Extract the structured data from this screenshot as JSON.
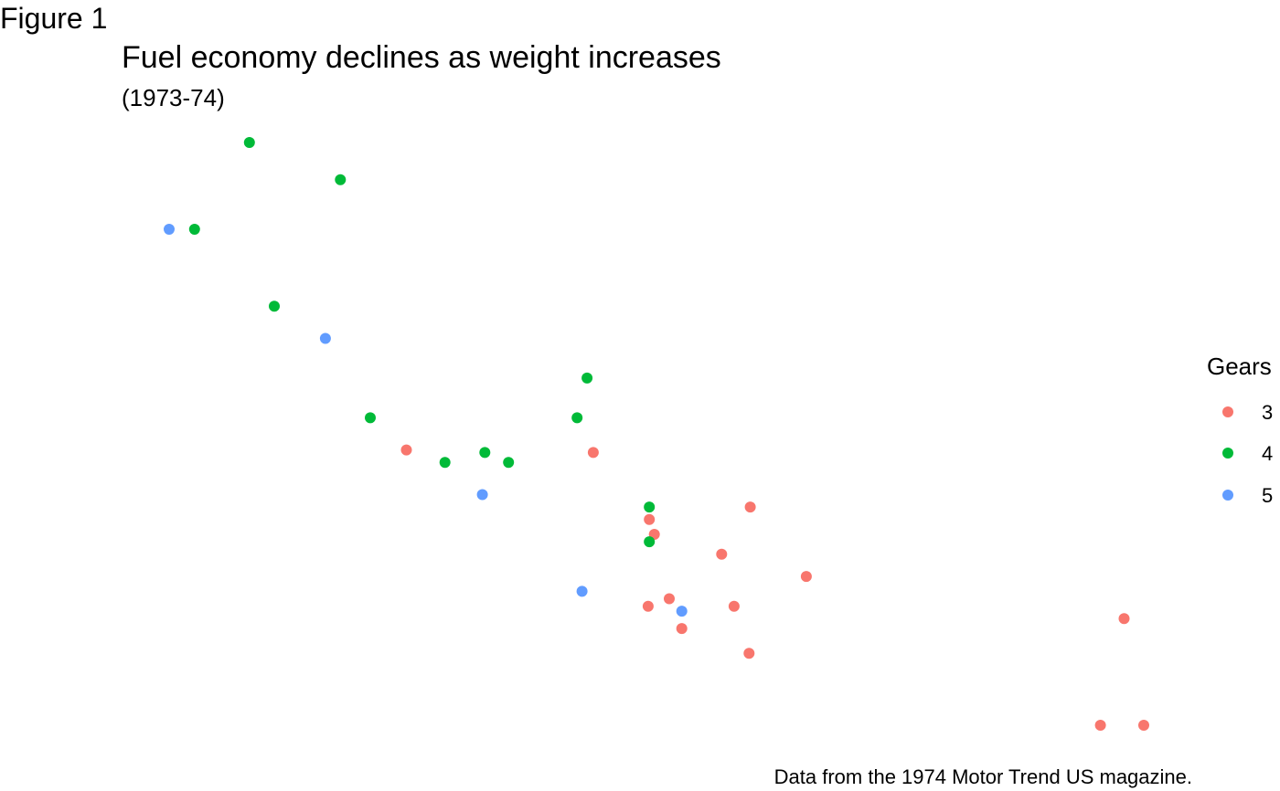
{
  "figure": {
    "tag": "Figure 1"
  },
  "chart_data": {
    "type": "scatter",
    "title": "Fuel economy declines as weight increases",
    "subtitle": "(1973-74)",
    "caption": "Data from the 1974 Motor Trend US magazine.",
    "xlabel": "",
    "ylabel": "",
    "xlim": [
      1.513,
      5.424
    ],
    "ylim": [
      10.4,
      33.9
    ],
    "grid": false,
    "axes_visible": false,
    "legend": {
      "title": "Gears",
      "position": "right",
      "entries": [
        {
          "label": "3",
          "color": "#F8766D"
        },
        {
          "label": "4",
          "color": "#00BA38"
        },
        {
          "label": "5",
          "color": "#619CFF"
        }
      ]
    },
    "series": [
      {
        "name": "3",
        "color": "#F8766D",
        "points": [
          {
            "x": 3.215,
            "y": 21.4
          },
          {
            "x": 3.44,
            "y": 18.7
          },
          {
            "x": 3.46,
            "y": 18.1
          },
          {
            "x": 3.57,
            "y": 14.3
          },
          {
            "x": 4.07,
            "y": 16.4
          },
          {
            "x": 3.73,
            "y": 17.3
          },
          {
            "x": 3.78,
            "y": 15.2
          },
          {
            "x": 5.25,
            "y": 10.4
          },
          {
            "x": 5.424,
            "y": 10.4
          },
          {
            "x": 5.345,
            "y": 14.7
          },
          {
            "x": 2.465,
            "y": 21.5
          },
          {
            "x": 3.52,
            "y": 15.5
          },
          {
            "x": 3.435,
            "y": 15.2
          },
          {
            "x": 3.84,
            "y": 13.3
          },
          {
            "x": 3.845,
            "y": 19.2
          }
        ]
      },
      {
        "name": "4",
        "color": "#00BA38",
        "points": [
          {
            "x": 2.62,
            "y": 21.0
          },
          {
            "x": 2.875,
            "y": 21.0
          },
          {
            "x": 2.32,
            "y": 22.8
          },
          {
            "x": 3.19,
            "y": 24.4
          },
          {
            "x": 3.15,
            "y": 22.8
          },
          {
            "x": 3.44,
            "y": 19.2
          },
          {
            "x": 3.44,
            "y": 17.8
          },
          {
            "x": 2.2,
            "y": 32.4
          },
          {
            "x": 1.615,
            "y": 30.4
          },
          {
            "x": 1.835,
            "y": 33.9
          },
          {
            "x": 1.935,
            "y": 27.3
          },
          {
            "x": 2.78,
            "y": 21.4
          }
        ]
      },
      {
        "name": "5",
        "color": "#619CFF",
        "points": [
          {
            "x": 2.14,
            "y": 26.0
          },
          {
            "x": 1.513,
            "y": 30.4
          },
          {
            "x": 3.17,
            "y": 15.8
          },
          {
            "x": 2.77,
            "y": 19.7
          },
          {
            "x": 3.57,
            "y": 15.0
          }
        ]
      }
    ]
  }
}
